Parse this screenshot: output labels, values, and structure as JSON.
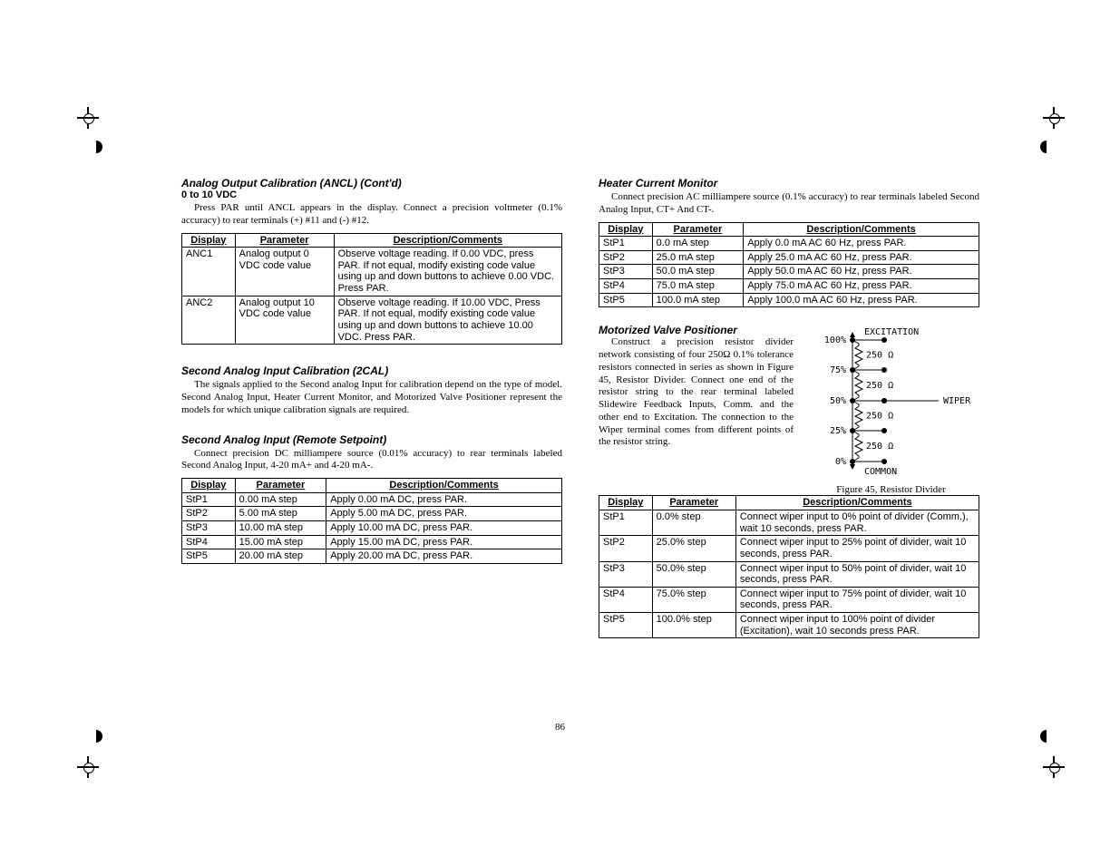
{
  "page_number": "86",
  "left": {
    "h1": "Analog Output Calibration (ANCL) (Cont'd)",
    "h1sub": "0 to 10 VDC",
    "p1": "Press PAR until ANCL appears in the display. Connect a precision voltmeter (0.1% accuracy) to rear terminals (+) #11 and (-) #12.",
    "table1": {
      "headers": [
        "Display",
        "Parameter",
        "Description/Comments"
      ],
      "rows": [
        [
          "ANC1",
          "Analog output 0 VDC code value",
          "Observe voltage reading. If 0.00 VDC, press PAR. If not equal, modify existing code value using up and down buttons to achieve 0.00 VDC. Press PAR."
        ],
        [
          "ANC2",
          "Analog output 10 VDC code value",
          "Observe voltage reading. If 10.00 VDC, Press PAR. If not equal, modify existing code value using up and down buttons to achieve 10.00 VDC. Press PAR."
        ]
      ]
    },
    "h2": "Second Analog Input Calibration (2CAL)",
    "p2": "The signals applied to the Second analog Input for calibration depend on the type of model. Second Analog Input, Heater Current Monitor, and Motorized Valve Positioner represent the models for which unique calibration signals are required.",
    "h3": "Second Analog Input (Remote Setpoint)",
    "p3": "Connect precision DC milliampere source (0.01% accuracy) to rear terminals labeled Second Analog Input, 4-20 mA+ and 4-20 mA-.",
    "table2": {
      "headers": [
        "Display",
        "Parameter",
        "Description/Comments"
      ],
      "rows": [
        [
          "StP1",
          "0.00 mA step",
          "Apply 0.00 mA DC, press PAR."
        ],
        [
          "StP2",
          "5.00 mA step",
          "Apply 5.00 mA DC, press PAR."
        ],
        [
          "StP3",
          "10.00 mA step",
          "Apply 10.00 mA DC, press PAR."
        ],
        [
          "StP4",
          "15.00 mA step",
          "Apply 15.00 mA DC, press PAR."
        ],
        [
          "StP5",
          "20.00 mA step",
          "Apply 20.00 mA DC, press PAR."
        ]
      ]
    }
  },
  "right": {
    "h1": "Heater Current Monitor",
    "p1": "Connect precision AC milliampere source (0.1% accuracy) to rear terminals labeled Second Analog Input, CT+ And CT-.",
    "table1": {
      "headers": [
        "Display",
        "Parameter",
        "Description/Comments"
      ],
      "rows": [
        [
          "StP1",
          "0.0 mA step",
          "Apply 0.0 mA AC 60 Hz, press PAR."
        ],
        [
          "StP2",
          "25.0 mA step",
          "Apply 25.0 mA AC 60 Hz, press PAR."
        ],
        [
          "StP3",
          "50.0 mA step",
          "Apply 50.0 mA AC 60 Hz, press PAR."
        ],
        [
          "StP4",
          "75.0 mA step",
          "Apply 75.0 mA AC 60 Hz, press PAR."
        ],
        [
          "StP5",
          "100.0 mA step",
          "Apply 100.0 mA AC 60 Hz, press PAR."
        ]
      ]
    },
    "h2": "Motorized Valve Positioner",
    "p2": "Construct a precision resistor divider network consisting of four 250Ω 0.1% tolerance resistors connected in series as shown in Figure 45, Resistor Divider. Connect one end of the resistor string to the rear terminal labeled Slidewire Feedback Inputs, Comm. and the other end to Excitation. The connection to the Wiper terminal comes from different points of the resistor string.",
    "figcaption": "Figure 45, Resistor Divider",
    "fig_labels": {
      "exc": "EXCITATION",
      "wiper": "WIPER",
      "common": "COMMON",
      "res": "250 Ω",
      "p100": "100%",
      "p75": "75%",
      "p50": "50%",
      "p25": "25%",
      "p0": "0%"
    },
    "table2": {
      "headers": [
        "Display",
        "Parameter",
        "Description/Comments"
      ],
      "rows": [
        [
          "StP1",
          "0.0% step",
          "Connect wiper input to 0% point of divider (Comm.), wait 10 seconds, press PAR."
        ],
        [
          "StP2",
          "25.0% step",
          "Connect wiper input to 25% point of divider, wait 10 seconds, press PAR."
        ],
        [
          "StP3",
          "50.0% step",
          "Connect wiper input to 50% point of divider, wait 10 seconds, press PAR."
        ],
        [
          "StP4",
          "75.0% step",
          "Connect wiper input to 75% point of divider, wait 10 seconds, press PAR."
        ],
        [
          "StP5",
          "100.0% step",
          "Connect wiper input to 100% point of divider (Excitation), wait 10 seconds press PAR."
        ]
      ]
    }
  },
  "table_col_widths": {
    "ancl": [
      "14%",
      "26%",
      "60%"
    ],
    "cal": [
      "14%",
      "24%",
      "62%"
    ],
    "mvp": [
      "14%",
      "22%",
      "64%"
    ]
  }
}
